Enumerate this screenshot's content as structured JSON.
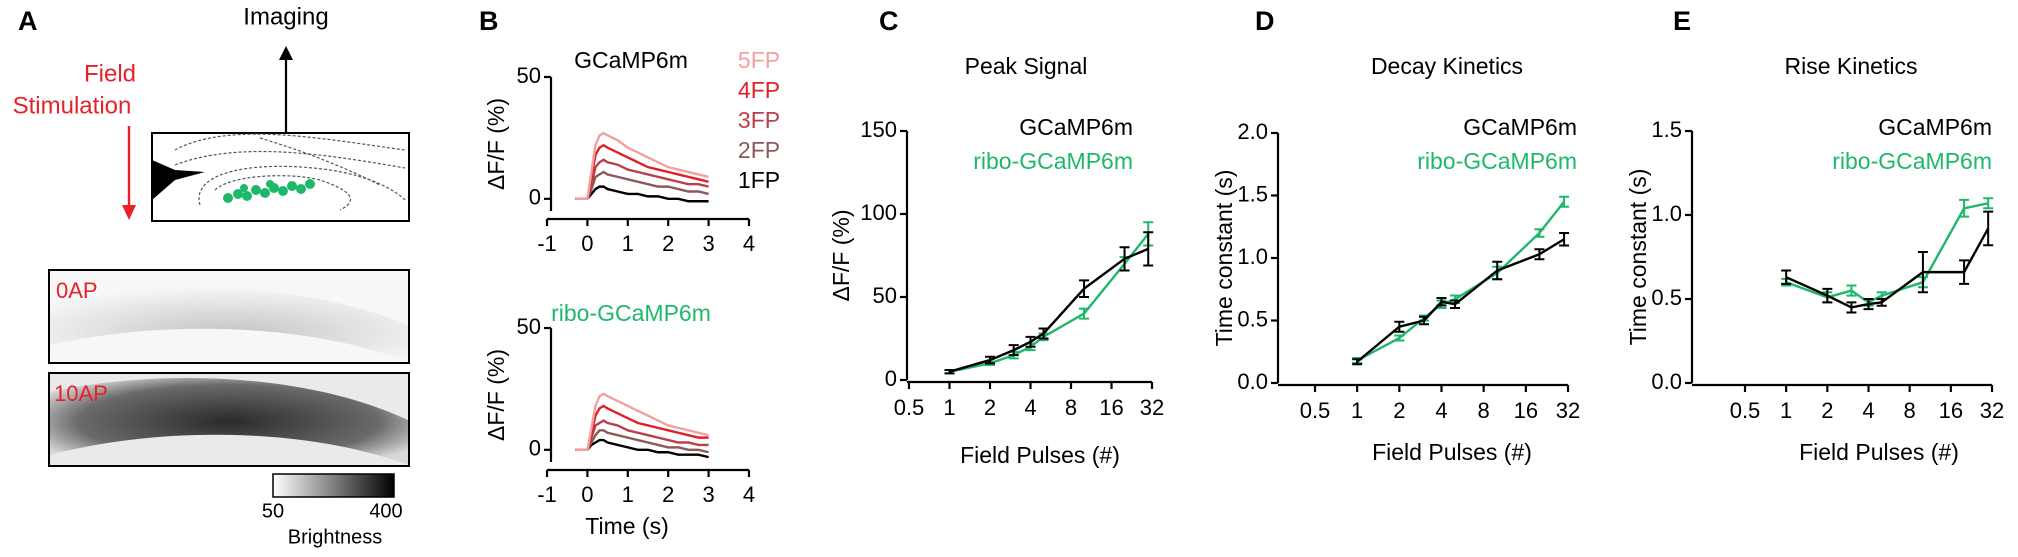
{
  "panel_a": {
    "label": "A",
    "imaging": "Imaging",
    "stimulation": [
      "Field",
      "Stimulation"
    ],
    "images": [
      "0AP",
      "10AP"
    ],
    "colorbar": {
      "min": 50,
      "max": 400,
      "label": "Brightness"
    }
  },
  "chart_data": [
    {
      "type": "line",
      "panel": "B",
      "title": "GCaMP6m",
      "title_color": "#000000",
      "ylabel": "ΔF/F (%)",
      "x": [
        -0.3,
        -0.2,
        -0.1,
        0,
        0.1,
        0.2,
        0.3,
        0.4,
        0.5,
        0.75,
        1,
        1.25,
        1.5,
        1.75,
        2,
        2.25,
        2.5,
        2.75,
        3
      ],
      "xlim": [
        -1,
        4
      ],
      "xticks": [
        -1,
        0,
        1,
        2,
        3,
        4
      ],
      "ylim": [
        -5,
        50
      ],
      "yticks": [
        0,
        50
      ],
      "series": [
        {
          "name": "5FP",
          "color": "#f2a0a0",
          "values": [
            0,
            0,
            0,
            0,
            11,
            22,
            26,
            27,
            26,
            24,
            21,
            19,
            17,
            15,
            13,
            12,
            11,
            10,
            9
          ]
        },
        {
          "name": "4FP",
          "color": "#e01f26",
          "values": [
            0,
            0,
            0,
            0,
            9,
            18,
            21,
            22,
            21,
            19,
            17,
            15,
            13,
            12,
            11,
            10,
            9,
            8,
            7
          ]
        },
        {
          "name": "3FP",
          "color": "#b8404a",
          "values": [
            0,
            0,
            0,
            0,
            6,
            13,
            15,
            16,
            15,
            14,
            12,
            11,
            10,
            9,
            8,
            7,
            6,
            6,
            5
          ]
        },
        {
          "name": "2FP",
          "color": "#8a5a5a",
          "values": [
            0,
            0,
            0,
            0,
            4,
            9,
            10,
            11,
            10,
            9,
            8,
            7,
            6,
            5,
            5,
            4,
            3,
            3,
            2
          ]
        },
        {
          "name": "1FP",
          "color": "#000000",
          "values": [
            0,
            0,
            0,
            0,
            2,
            4,
            5,
            5,
            4,
            3,
            2,
            2,
            1,
            1,
            0,
            0,
            -1,
            -1,
            -1
          ]
        }
      ]
    },
    {
      "type": "line",
      "title": "ribo-GCaMP6m",
      "title_color": "#1db86a",
      "ylabel": "ΔF/F (%)",
      "xlabel": "Time (s)",
      "x": [
        -0.3,
        -0.2,
        -0.1,
        0,
        0.1,
        0.2,
        0.3,
        0.4,
        0.5,
        0.75,
        1,
        1.25,
        1.5,
        1.75,
        2,
        2.25,
        2.5,
        2.75,
        3
      ],
      "xlim": [
        -1,
        4
      ],
      "xticks": [
        -1,
        0,
        1,
        2,
        3,
        4
      ],
      "ylim": [
        -5,
        50
      ],
      "yticks": [
        0,
        50
      ],
      "series": [
        {
          "color": "#f2a0a0",
          "values": [
            0,
            0,
            0,
            0,
            9,
            18,
            22,
            23,
            22,
            20,
            18,
            16,
            14,
            12,
            10,
            9,
            8,
            7,
            6
          ]
        },
        {
          "color": "#e01f26",
          "values": [
            0,
            0,
            0,
            0,
            7,
            14,
            17,
            18,
            17,
            15,
            13,
            11,
            10,
            9,
            8,
            7,
            6,
            5,
            5
          ]
        },
        {
          "color": "#b8404a",
          "values": [
            0,
            0,
            0,
            0,
            5,
            10,
            11,
            12,
            11,
            10,
            8,
            7,
            6,
            5,
            4,
            3,
            3,
            2,
            2
          ]
        },
        {
          "color": "#8a5a5a",
          "values": [
            0,
            0,
            0,
            0,
            3,
            6,
            8,
            8,
            7,
            6,
            5,
            4,
            3,
            2,
            1,
            1,
            0,
            0,
            -1
          ]
        },
        {
          "color": "#000000",
          "values": [
            0,
            0,
            0,
            0,
            2,
            3,
            4,
            4,
            3,
            2,
            1,
            0,
            0,
            -1,
            -1,
            -2,
            -2,
            -2,
            -3
          ]
        }
      ]
    },
    {
      "type": "line",
      "panel": "C",
      "title": "Peak Signal",
      "xlabel": "Field Pulses (#)",
      "ylabel": "ΔF/F (%)",
      "log_x": true,
      "x": [
        1,
        2,
        3,
        4,
        5,
        10,
        20,
        30
      ],
      "xlim": [
        0.5,
        32
      ],
      "xticks": [
        0.5,
        1,
        2,
        4,
        8,
        16,
        32
      ],
      "ylim": [
        0,
        150
      ],
      "yticks": [
        0,
        50,
        100,
        150
      ],
      "series": [
        {
          "name": "GCaMP6m",
          "color": "#000000",
          "values": [
            5,
            12,
            18,
            23,
            28,
            55,
            73,
            79
          ],
          "errors": [
            1,
            2,
            3,
            3,
            3,
            5,
            7,
            10
          ]
        },
        {
          "name": "ribo-GCaMP6m",
          "color": "#1db86a",
          "values": [
            5,
            10,
            15,
            20,
            26,
            40,
            70,
            88
          ],
          "errors": [
            1,
            1,
            2,
            2,
            2,
            3,
            4,
            7
          ]
        }
      ]
    },
    {
      "type": "line",
      "panel": "D",
      "title": "Decay Kinetics",
      "xlabel": "Field Pulses (#)",
      "ylabel": "Time constant (s)",
      "log_x": true,
      "x": [
        1,
        2,
        3,
        4,
        5,
        10,
        20,
        30
      ],
      "xlim": [
        0.5,
        32
      ],
      "xticks": [
        0.5,
        1,
        2,
        4,
        8,
        16,
        32
      ],
      "ylim": [
        0,
        2
      ],
      "yticks": [
        {
          "value": 0,
          "label": "0.0"
        },
        0.5,
        {
          "value": 1,
          "label": "1.0"
        },
        1.5,
        {
          "value": 2,
          "label": "2.0"
        }
      ],
      "series": [
        {
          "name": "GCaMP6m",
          "color": "#000000",
          "values": [
            0.17,
            0.45,
            0.5,
            0.65,
            0.63,
            0.9,
            1.03,
            1.15
          ],
          "errors": [
            0.02,
            0.04,
            0.03,
            0.03,
            0.03,
            0.07,
            0.04,
            0.05
          ]
        },
        {
          "name": "ribo-GCaMP6m",
          "color": "#1db86a",
          "values": [
            0.18,
            0.36,
            0.52,
            0.63,
            0.67,
            0.88,
            1.2,
            1.45
          ],
          "errors": [
            0.02,
            0.02,
            0.02,
            0.03,
            0.03,
            0.05,
            0.03,
            0.04
          ]
        }
      ]
    },
    {
      "type": "line",
      "panel": "E",
      "title": "Rise Kinetics",
      "xlabel": "Field Pulses (#)",
      "ylabel": "Time constant (s)",
      "log_x": true,
      "x": [
        1,
        2,
        3,
        4,
        5,
        10,
        20,
        30
      ],
      "xlim": [
        0.5,
        32
      ],
      "xticks": [
        0.5,
        1,
        2,
        4,
        8,
        16,
        32
      ],
      "ylim": [
        0,
        1.5
      ],
      "yticks": [
        {
          "value": 0,
          "label": "0.0"
        },
        0.5,
        {
          "value": 1,
          "label": "1.0"
        },
        1.5
      ],
      "series": [
        {
          "name": "GCaMP6m",
          "color": "#000000",
          "values": [
            0.63,
            0.52,
            0.45,
            0.47,
            0.48,
            0.66,
            0.66,
            0.92
          ],
          "errors": [
            0.04,
            0.04,
            0.03,
            0.03,
            0.02,
            0.12,
            0.07,
            0.1
          ]
        },
        {
          "name": "ribo-GCaMP6m",
          "color": "#1db86a",
          "values": [
            0.6,
            0.51,
            0.55,
            0.48,
            0.52,
            0.6,
            1.04,
            1.07
          ],
          "errors": [
            0.02,
            0.03,
            0.03,
            0.02,
            0.02,
            0.03,
            0.05,
            0.03
          ]
        }
      ]
    }
  ]
}
